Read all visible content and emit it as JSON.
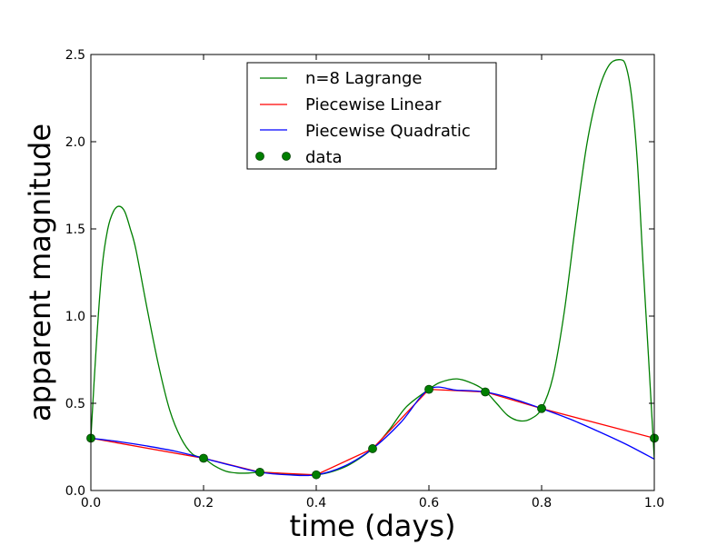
{
  "chart_data": {
    "type": "line",
    "xlabel": "time (days)",
    "ylabel": "apparent magnitude",
    "xlim": [
      0.0,
      1.0
    ],
    "ylim": [
      0.0,
      2.5
    ],
    "x_ticks": [
      "0.0",
      "0.2",
      "0.4",
      "0.6",
      "0.8",
      "1.0"
    ],
    "y_ticks": [
      "0.0",
      "0.5",
      "1.0",
      "1.5",
      "2.0",
      "2.5"
    ],
    "grid": false,
    "legend_placement": "top-center",
    "series": [
      {
        "name": "n=8 Lagrange",
        "color": "#007f00",
        "style": "line",
        "x": [
          0.0,
          0.01,
          0.02,
          0.03,
          0.04,
          0.05,
          0.06,
          0.07,
          0.08,
          0.1,
          0.12,
          0.14,
          0.16,
          0.18,
          0.2,
          0.22,
          0.24,
          0.26,
          0.28,
          0.3,
          0.33,
          0.36,
          0.4,
          0.43,
          0.46,
          0.5,
          0.53,
          0.56,
          0.6,
          0.62,
          0.65,
          0.68,
          0.7,
          0.72,
          0.74,
          0.76,
          0.78,
          0.8,
          0.82,
          0.84,
          0.86,
          0.88,
          0.9,
          0.92,
          0.94,
          0.95,
          0.96,
          0.97,
          0.98,
          0.99,
          1.0
        ],
        "y": [
          0.3,
          0.85,
          1.28,
          1.5,
          1.6,
          1.63,
          1.6,
          1.5,
          1.38,
          1.04,
          0.72,
          0.46,
          0.3,
          0.21,
          0.185,
          0.14,
          0.11,
          0.1,
          0.1,
          0.105,
          0.1,
          0.092,
          0.09,
          0.11,
          0.15,
          0.24,
          0.35,
          0.48,
          0.58,
          0.62,
          0.64,
          0.61,
          0.57,
          0.5,
          0.43,
          0.4,
          0.41,
          0.47,
          0.65,
          1.02,
          1.52,
          1.98,
          2.28,
          2.44,
          2.47,
          2.43,
          2.25,
          1.88,
          1.3,
          0.75,
          0.18
        ]
      },
      {
        "name": "Piecewise Linear",
        "color": "#ff0000",
        "style": "line",
        "x": [
          0.0,
          0.2,
          0.3,
          0.4,
          0.5,
          0.6,
          0.7,
          0.8,
          1.0
        ],
        "y": [
          0.3,
          0.185,
          0.105,
          0.09,
          0.24,
          0.58,
          0.565,
          0.47,
          0.3
        ]
      },
      {
        "name": "Piecewise Quadratic",
        "color": "#0000ff",
        "style": "line",
        "x": [
          0.0,
          0.05,
          0.1,
          0.15,
          0.2,
          0.25,
          0.3,
          0.35,
          0.4,
          0.45,
          0.5,
          0.55,
          0.6,
          0.65,
          0.7,
          0.75,
          0.8,
          0.85,
          0.9,
          0.95,
          1.0
        ],
        "y": [
          0.3,
          0.28,
          0.255,
          0.225,
          0.185,
          0.143,
          0.105,
          0.09,
          0.09,
          0.14,
          0.24,
          0.39,
          0.58,
          0.575,
          0.565,
          0.525,
          0.47,
          0.41,
          0.34,
          0.265,
          0.18
        ]
      },
      {
        "name": "data",
        "color": "#007f00",
        "style": "markers",
        "x": [
          0.0,
          0.2,
          0.3,
          0.4,
          0.5,
          0.6,
          0.7,
          0.8,
          1.0
        ],
        "y": [
          0.3,
          0.185,
          0.105,
          0.09,
          0.24,
          0.58,
          0.565,
          0.47,
          0.3
        ]
      }
    ]
  }
}
